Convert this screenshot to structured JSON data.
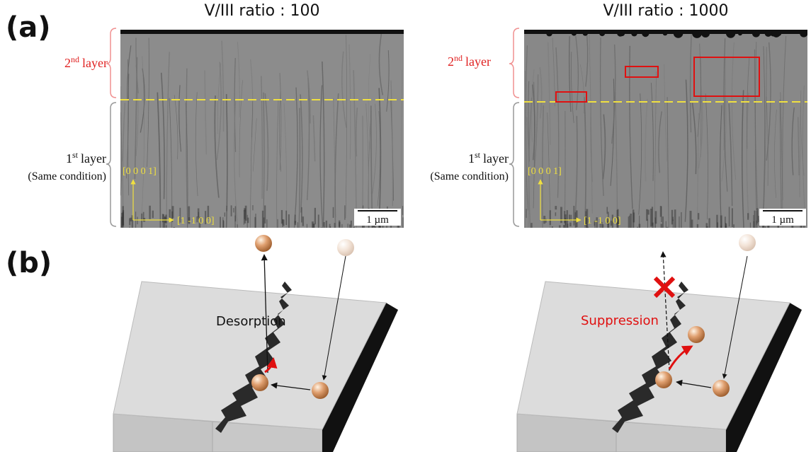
{
  "panel_a": {
    "label": "(a)",
    "left": {
      "title": "V/III ratio : 100",
      "second_layer": {
        "number": "2",
        "suffix": "nd",
        "word": "layer"
      },
      "first_layer": {
        "number": "1",
        "suffix": "st",
        "word": "layer",
        "note": "(Same condition)"
      },
      "axis_up": "[0 0 0 1]",
      "axis_right": "[1 -1 0 0]",
      "scale_bar": "1 µm"
    },
    "right": {
      "title": "V/III ratio : 1000",
      "second_layer": {
        "number": "2",
        "suffix": "nd",
        "word": "layer"
      },
      "first_layer": {
        "number": "1",
        "suffix": "st",
        "word": "layer",
        "note": "(Same condition)"
      },
      "axis_up": "[0 0 0 1]",
      "axis_right": "[1 -1 0 0]",
      "scale_bar": "1 µm"
    }
  },
  "panel_b": {
    "label": "(b)",
    "left": {
      "caption": "Desorption"
    },
    "right": {
      "caption": "Suppression"
    }
  }
}
